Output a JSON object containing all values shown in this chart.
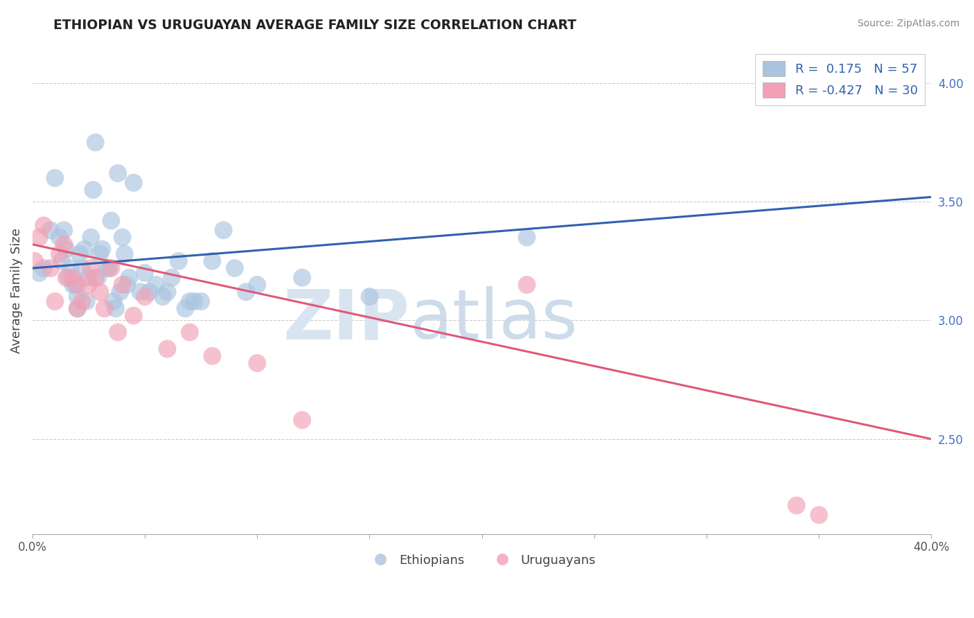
{
  "title": "ETHIOPIAN VS URUGUAYAN AVERAGE FAMILY SIZE CORRELATION CHART",
  "source": "Source: ZipAtlas.com",
  "ylabel": "Average Family Size",
  "xlim": [
    0.0,
    40.0
  ],
  "ylim": [
    2.1,
    4.15
  ],
  "yticks_right": [
    2.5,
    3.0,
    3.5,
    4.0
  ],
  "blue_color": "#aac4e0",
  "pink_color": "#f2a0b5",
  "blue_line_color": "#3060b0",
  "pink_line_color": "#e05878",
  "legend_blue_label": "R =  0.175   N = 57",
  "legend_pink_label": "R = -0.427   N = 30",
  "blue_line_start_y": 3.22,
  "blue_line_end_y": 3.52,
  "pink_line_start_y": 3.32,
  "pink_line_end_y": 2.5,
  "blue_x": [
    0.3,
    2.8,
    1.0,
    1.5,
    2.0,
    1.2,
    2.5,
    3.0,
    2.2,
    3.5,
    1.8,
    4.0,
    3.8,
    2.7,
    4.5,
    0.8,
    5.0,
    6.0,
    1.3,
    2.9,
    3.3,
    4.2,
    7.0,
    8.0,
    3.1,
    5.5,
    2.4,
    6.5,
    1.6,
    2.6,
    3.7,
    9.0,
    4.8,
    7.5,
    2.1,
    1.9,
    3.4,
    10.0,
    5.8,
    4.3,
    6.8,
    2.3,
    3.9,
    12.0,
    8.5,
    15.0,
    22.0,
    5.2,
    7.2,
    1.7,
    4.1,
    6.2,
    3.6,
    2.0,
    1.4,
    0.5,
    9.5
  ],
  "blue_y": [
    3.2,
    3.75,
    3.6,
    3.3,
    3.1,
    3.35,
    3.18,
    3.28,
    3.22,
    3.42,
    3.15,
    3.35,
    3.62,
    3.55,
    3.58,
    3.38,
    3.2,
    3.12,
    3.25,
    3.18,
    3.22,
    3.15,
    3.08,
    3.25,
    3.3,
    3.15,
    3.08,
    3.25,
    3.18,
    3.35,
    3.05,
    3.22,
    3.12,
    3.08,
    3.28,
    3.15,
    3.22,
    3.15,
    3.1,
    3.18,
    3.05,
    3.3,
    3.12,
    3.18,
    3.38,
    3.1,
    3.35,
    3.12,
    3.08,
    3.22,
    3.28,
    3.18,
    3.08,
    3.05,
    3.38,
    3.22,
    3.12
  ],
  "pink_x": [
    0.1,
    0.3,
    1.0,
    1.5,
    0.5,
    2.0,
    0.8,
    2.5,
    1.2,
    3.0,
    1.8,
    3.5,
    2.2,
    4.0,
    4.5,
    5.0,
    2.8,
    6.0,
    3.2,
    7.0,
    8.0,
    10.0,
    1.4,
    3.8,
    2.0,
    2.6,
    12.0,
    34.0,
    22.0,
    35.0
  ],
  "pink_y": [
    3.25,
    3.35,
    3.08,
    3.18,
    3.4,
    3.05,
    3.22,
    3.15,
    3.28,
    3.12,
    3.18,
    3.22,
    3.08,
    3.15,
    3.02,
    3.1,
    3.18,
    2.88,
    3.05,
    2.95,
    2.85,
    2.82,
    3.32,
    2.95,
    3.15,
    3.22,
    2.58,
    2.22,
    3.15,
    2.18
  ]
}
